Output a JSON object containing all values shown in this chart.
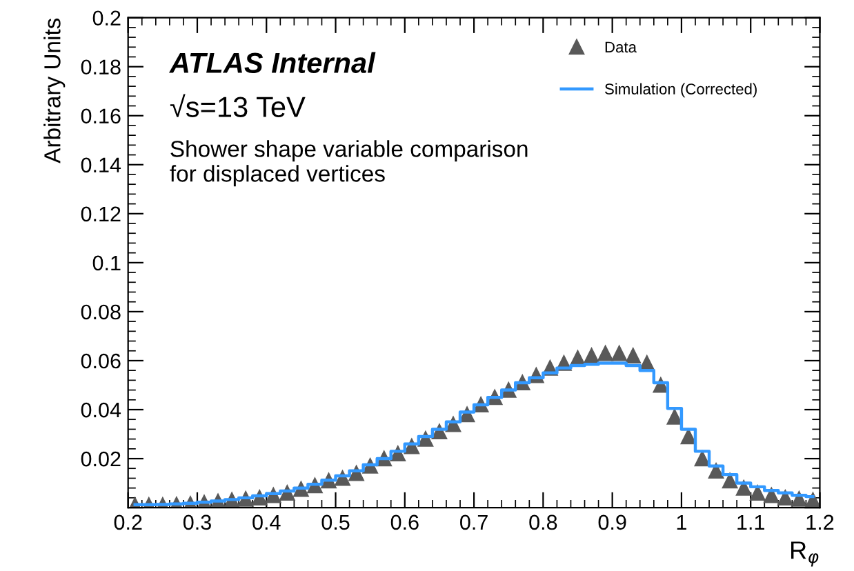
{
  "chart_data": {
    "type": "scatter",
    "xlabel": "R$_{φ}$",
    "ylabel": "Arbitrary Units",
    "annotations": [
      "ATLAS Internal",
      "√s=13 TeV",
      "Shower shape variable comparison\nfor displaced vertices"
    ],
    "x": [
      0.21,
      0.23,
      0.25,
      0.27,
      0.29,
      0.31,
      0.33,
      0.35,
      0.37,
      0.39,
      0.41,
      0.43,
      0.45,
      0.47,
      0.49,
      0.51,
      0.53,
      0.55,
      0.57,
      0.59,
      0.61,
      0.63,
      0.65,
      0.67,
      0.69,
      0.71,
      0.73,
      0.75,
      0.77,
      0.79,
      0.81,
      0.83,
      0.85,
      0.87,
      0.89,
      0.91,
      0.93,
      0.95,
      0.97,
      0.99,
      1.01,
      1.03,
      1.05,
      1.07,
      1.09,
      1.11,
      1.13,
      1.15,
      1.17,
      1.19
    ],
    "series": [
      {
        "name": "Data",
        "marker": "triangle",
        "color": "#595959",
        "values": [
          0.001,
          0.001,
          0.001,
          0.0012,
          0.0015,
          0.002,
          0.0025,
          0.003,
          0.0035,
          0.004,
          0.005,
          0.006,
          0.0075,
          0.009,
          0.011,
          0.012,
          0.014,
          0.017,
          0.02,
          0.022,
          0.025,
          0.028,
          0.031,
          0.034,
          0.038,
          0.042,
          0.045,
          0.048,
          0.051,
          0.054,
          0.057,
          0.059,
          0.061,
          0.062,
          0.063,
          0.063,
          0.062,
          0.059,
          0.05,
          0.037,
          0.029,
          0.02,
          0.015,
          0.011,
          0.008,
          0.006,
          0.005,
          0.004,
          0.0035,
          0.003
        ]
      },
      {
        "name": "Simulation (Corrected)",
        "type": "step",
        "color": "#3399ff",
        "values": [
          0.0012,
          0.0012,
          0.0013,
          0.0015,
          0.0018,
          0.0022,
          0.0027,
          0.0033,
          0.004,
          0.0048,
          0.0057,
          0.0068,
          0.008,
          0.0095,
          0.0112,
          0.013,
          0.015,
          0.0175,
          0.02,
          0.023,
          0.026,
          0.029,
          0.032,
          0.035,
          0.039,
          0.042,
          0.045,
          0.048,
          0.051,
          0.053,
          0.055,
          0.057,
          0.058,
          0.0585,
          0.059,
          0.059,
          0.058,
          0.056,
          0.051,
          0.0405,
          0.032,
          0.023,
          0.017,
          0.0135,
          0.01,
          0.0085,
          0.007,
          0.006,
          0.005,
          0.0045
        ]
      }
    ],
    "xlim": [
      0.2,
      1.2
    ],
    "xticks": [
      0.2,
      0.3,
      0.4,
      0.5,
      0.6,
      0.7,
      0.8,
      0.9,
      1,
      1.1,
      1.2
    ],
    "ylim": [
      0,
      0.2
    ],
    "yticks": [
      {
        "value": 0,
        "label": null
      },
      0.02,
      0.04,
      0.06,
      0.08,
      0.1,
      0.12,
      0.14,
      0.16,
      0.18,
      0.2
    ],
    "grid": false,
    "legend": "top right"
  }
}
